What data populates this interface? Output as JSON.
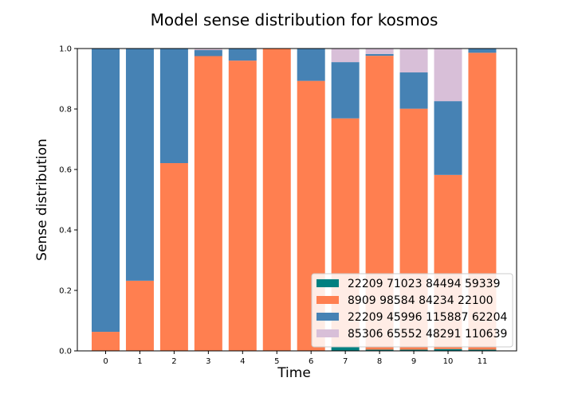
{
  "chart_data": {
    "type": "bar",
    "stacked": true,
    "title": "Model sense distribution for kosmos",
    "xlabel": "Time",
    "ylabel": "Sense distribution",
    "ylim": [
      0,
      1.0
    ],
    "yticks": [
      "0.0",
      "0.2",
      "0.4",
      "0.6",
      "0.8",
      "1.0"
    ],
    "categories": [
      "0",
      "1",
      "2",
      "3",
      "4",
      "5",
      "6",
      "7",
      "8",
      "9",
      "10",
      "11"
    ],
    "legend_position": "lower-right",
    "series": [
      {
        "name": "22209 71023 84494 59339",
        "color": "#008080",
        "values": [
          0,
          0,
          0,
          0,
          0,
          0,
          0,
          0.012,
          0.004,
          0.004,
          0.006,
          0.004
        ]
      },
      {
        "name": "8909 98584 84234 22100",
        "color": "#ff7f50",
        "values": [
          0.063,
          0.232,
          0.621,
          0.975,
          0.96,
          1.0,
          0.893,
          0.757,
          0.972,
          0.797,
          0.576,
          0.982
        ]
      },
      {
        "name": "22209 45996 115887 62204",
        "color": "#4682b4",
        "values": [
          0.937,
          0.768,
          0.379,
          0.02,
          0.04,
          0,
          0.107,
          0.186,
          0.006,
          0.12,
          0.244,
          0.014
        ]
      },
      {
        "name": "85306 65552 48291 110639",
        "color": "#d8bfd8",
        "values": [
          0,
          0,
          0,
          0.005,
          0,
          0,
          0,
          0.045,
          0.018,
          0.079,
          0.174,
          0
        ]
      }
    ]
  }
}
